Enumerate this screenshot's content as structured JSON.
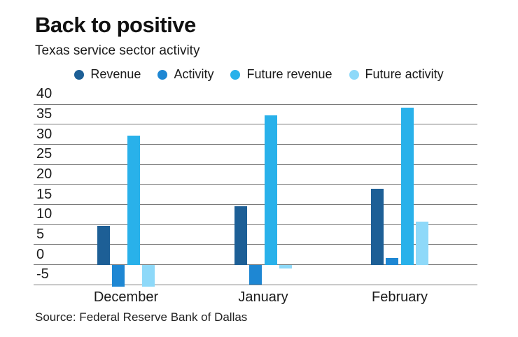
{
  "title": "Back to positive",
  "subtitle": "Texas service sector activity",
  "source": "Source: Federal Reserve Bank of Dallas",
  "colors": {
    "revenue": "#1d5f96",
    "activity": "#1e87d3",
    "future_revenue": "#29b1ea",
    "future_activity": "#8ed9f9",
    "text": "#1a1a1a",
    "gridline": "#7a7a7a"
  },
  "chart_data": {
    "type": "bar",
    "title": "Back to positive",
    "subtitle": "Texas service sector activity",
    "categories": [
      "December",
      "January",
      "February"
    ],
    "series": [
      {
        "name": "Revenue",
        "color_key": "revenue",
        "values": [
          9.7,
          14.5,
          19.0
        ]
      },
      {
        "name": "Activity",
        "color_key": "activity",
        "values": [
          -5.4,
          -5.0,
          1.6
        ]
      },
      {
        "name": "Future revenue",
        "color_key": "future_revenue",
        "values": [
          32.2,
          37.2,
          39.2
        ]
      },
      {
        "name": "Future activity",
        "color_key": "future_activity",
        "values": [
          -5.4,
          -1.0,
          10.8
        ]
      }
    ],
    "yticks": [
      40,
      35,
      30,
      25,
      20,
      15,
      10,
      5,
      0,
      -5
    ],
    "ylim": [
      -7,
      40
    ],
    "grid": true,
    "legend_position": "top",
    "source": "Source: Federal Reserve Bank of Dallas"
  }
}
